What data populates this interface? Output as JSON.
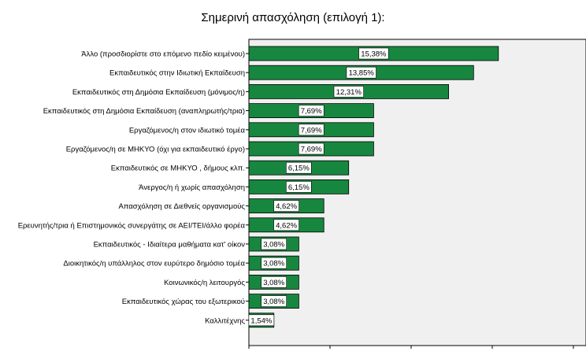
{
  "chart_data": {
    "type": "bar",
    "orientation": "horizontal",
    "title": "Σημερινή απασχόληση (επιλογή 1):",
    "xlabel": "",
    "ylabel": "",
    "xlim": [
      0,
      20
    ],
    "xticks": [
      "0",
      "5",
      "10",
      "15",
      "20"
    ],
    "grid": false,
    "bar_color": "#17873f",
    "plot_background": "#f0f0f0",
    "categories": [
      "Άλλο (προσδιορίστε στο επόμενο πεδίο κειμένου)",
      "Εκπαιδευτικός στην Ιδιωτική Εκπαίδευση",
      "Εκπαιδευτικός στη Δημόσια Εκπαίδευση (μόνιμος/η)",
      "Εκπαιδευτικός στη Δημόσια Εκπαίδευση (αναπληρωτής/τρια)",
      "Εργαζόμενος/η στον ιδιωτικό τομέα",
      "Εργαζόμενος/η σε ΜΗΚΥΟ (όχι για εκπαιδευτικό έργο)",
      "Εκπαιδευτικός σε ΜΗΚΥΟ , δήμους κλπ.",
      "Άνεργος/η  ή χωρίς απασχόληση",
      "Απασχόληση σε Διεθνείς οργανισμούς",
      "Ερευνητής/τρια ή Επιστημονικός συνεργάτης σε ΑΕΙ/ΤΕΙ/άλλο φορέα",
      "Εκπαιδευτικός - Ιδιαίτερα μαθήματα κατ' οίκον",
      "Διοικητικός/η υπάλληλος στον ευρύτερο δημόσιο τομέα",
      "Κοινωνικός/η λειτουργός",
      "Εκπαιδευτικός χώρας του εξωτερικού",
      "Καλλιτέχνης"
    ],
    "values": [
      15.38,
      13.85,
      12.31,
      7.69,
      7.69,
      7.69,
      6.15,
      6.15,
      4.62,
      4.62,
      3.08,
      3.08,
      3.08,
      3.08,
      1.54
    ],
    "data_labels": [
      "15,38%",
      "13,85%",
      "12,31%",
      "7,69%",
      "7,69%",
      "7,69%",
      "6,15%",
      "6,15%",
      "4,62%",
      "4,62%",
      "3,08%",
      "3,08%",
      "3,08%",
      "3,08%",
      "1,54%"
    ]
  }
}
